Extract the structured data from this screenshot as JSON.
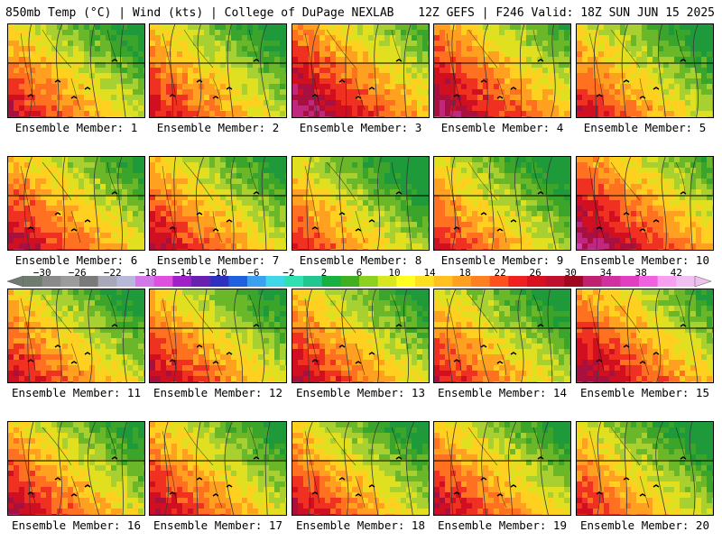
{
  "header": {
    "left": "850mb Temp (°C) | Wind (kts) | College of DuPage NEXLAB",
    "right": "12Z GEFS | F246 Valid: 18Z SUN JUN 15 2025"
  },
  "panel_prefix": "Ensemble Member: ",
  "members": [
    {
      "id": "1",
      "warmth": 0.55
    },
    {
      "id": "2",
      "warmth": 0.55
    },
    {
      "id": "3",
      "warmth": 0.85
    },
    {
      "id": "4",
      "warmth": 0.8
    },
    {
      "id": "5",
      "warmth": 0.5
    },
    {
      "id": "6",
      "warmth": 0.65
    },
    {
      "id": "7",
      "warmth": 0.6
    },
    {
      "id": "8",
      "warmth": 0.4
    },
    {
      "id": "9",
      "warmth": 0.45
    },
    {
      "id": "10",
      "warmth": 0.85
    },
    {
      "id": "11",
      "warmth": 0.55
    },
    {
      "id": "12",
      "warmth": 0.6
    },
    {
      "id": "13",
      "warmth": 0.6
    },
    {
      "id": "14",
      "warmth": 0.5
    },
    {
      "id": "15",
      "warmth": 0.75
    },
    {
      "id": "16",
      "warmth": 0.6
    },
    {
      "id": "17",
      "warmth": 0.6
    },
    {
      "id": "18",
      "warmth": 0.55
    },
    {
      "id": "19",
      "warmth": 0.6
    },
    {
      "id": "20",
      "warmth": 0.45
    }
  ],
  "colorbar": {
    "labels": [
      "−30",
      "−26",
      "−22",
      "−18",
      "−14",
      "−10",
      "−6",
      "−2",
      "2",
      "6",
      "10",
      "14",
      "18",
      "22",
      "26",
      "30",
      "34",
      "38",
      "42"
    ],
    "colors": [
      "#6e7b6e",
      "#8a8a8a",
      "#9c9c9c",
      "#7a7a7a",
      "#a8a8b8",
      "#b8b8d8",
      "#d278e8",
      "#e050e0",
      "#a020c8",
      "#6a20b0",
      "#3030c0",
      "#2060e0",
      "#3aa0f0",
      "#40d8e8",
      "#30e0b0",
      "#20c890",
      "#18b040",
      "#40b020",
      "#8cd020",
      "#d8e820",
      "#ffff20",
      "#ffe020",
      "#ffc020",
      "#ffa020",
      "#ff8020",
      "#ff5020",
      "#f02020",
      "#d81020",
      "#c01030",
      "#a00820",
      "#c02070",
      "#d030a0",
      "#e040c0",
      "#f060e0",
      "#f8a0f0",
      "#f0c0f0"
    ]
  },
  "field_colors": [
    "#1e9a3a",
    "#3aa52a",
    "#6ab82a",
    "#a8d030",
    "#e0e020",
    "#ffd020",
    "#ffa020",
    "#ff7020",
    "#f03020",
    "#d01020",
    "#a81040",
    "#c02880",
    "#d040b0"
  ]
}
